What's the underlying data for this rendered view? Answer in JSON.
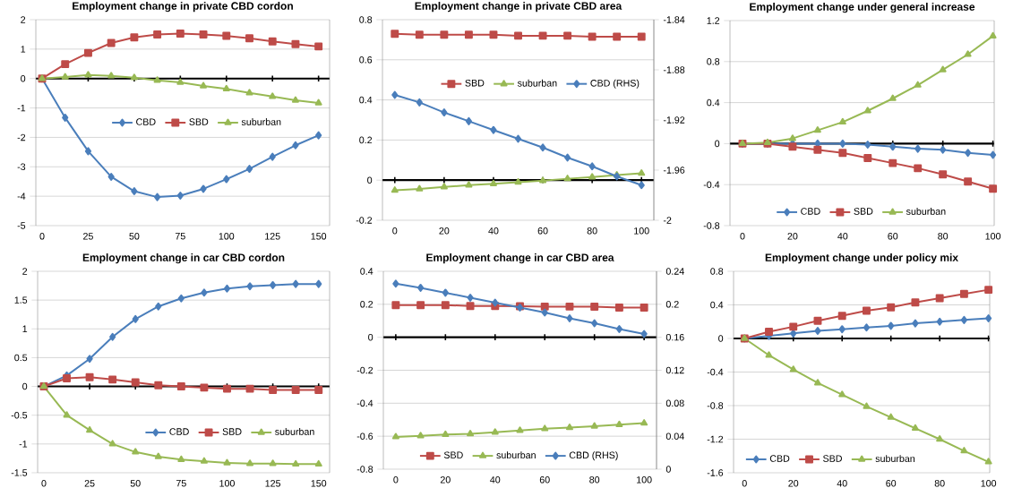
{
  "chart_data": [
    {
      "type": "line",
      "title": "Employment change in private CBD cordon",
      "x": [
        0,
        12.5,
        25,
        37.5,
        50,
        62.5,
        75,
        87.5,
        100,
        112.5,
        125,
        137.5,
        150
      ],
      "xlim": [
        -3.4,
        156
      ],
      "xticks": [
        0,
        25,
        50,
        75,
        100,
        125,
        150
      ],
      "ylim": [
        -5,
        2
      ],
      "yticks": [
        -5,
        -4,
        -3,
        -2,
        -1,
        0,
        1,
        2
      ],
      "grid": "y",
      "legend": "center",
      "series": [
        {
          "name": "CBD",
          "color": "#4a7ebb",
          "marker": "diamond",
          "values": [
            0,
            -1.33,
            -2.47,
            -3.34,
            -3.83,
            -4.03,
            -3.98,
            -3.75,
            -3.42,
            -3.07,
            -2.66,
            -2.27,
            -1.93
          ]
        },
        {
          "name": "SBD",
          "color": "#be4b48",
          "marker": "square",
          "values": [
            0,
            0.49,
            0.87,
            1.21,
            1.4,
            1.5,
            1.53,
            1.5,
            1.45,
            1.37,
            1.26,
            1.17,
            1.09
          ]
        },
        {
          "name": "suburban",
          "color": "#98b954",
          "marker": "triangle",
          "values": [
            0,
            0.05,
            0.12,
            0.09,
            0.03,
            -0.06,
            -0.13,
            -0.25,
            -0.35,
            -0.49,
            -0.61,
            -0.74,
            -0.83
          ]
        }
      ]
    },
    {
      "type": "line",
      "title": "Employment change in private CBD area",
      "x": [
        0,
        10,
        20,
        30,
        40,
        50,
        60,
        70,
        80,
        90,
        100
      ],
      "xlim": [
        -5,
        105
      ],
      "xticks": [
        0,
        20,
        40,
        60,
        80,
        100
      ],
      "ylim": [
        -0.2,
        0.8
      ],
      "yticks": [
        -0.2,
        0,
        0.2,
        0.4,
        0.6,
        0.8
      ],
      "y2lim": [
        -2,
        -1.84
      ],
      "y2ticks": [
        -2,
        -1.96,
        -1.92,
        -1.88,
        -1.84
      ],
      "grid": "y",
      "legend": "right",
      "series": [
        {
          "name": "SBD",
          "color": "#be4b48",
          "marker": "square",
          "values": [
            0.73,
            0.725,
            0.725,
            0.725,
            0.725,
            0.72,
            0.72,
            0.72,
            0.715,
            0.715,
            0.715
          ]
        },
        {
          "name": "suburban",
          "color": "#98b954",
          "marker": "triangle",
          "values": [
            -0.051,
            -0.044,
            -0.034,
            -0.025,
            -0.018,
            -0.01,
            -0.003,
            0.007,
            0.015,
            0.025,
            0.034
          ]
        },
        {
          "name": "CBD (RHS)",
          "color": "#4a7ebb",
          "marker": "diamond",
          "axis": "y2",
          "values": [
            -1.9,
            -1.906,
            -1.914,
            -1.921,
            -1.928,
            -1.935,
            -1.942,
            -1.95,
            -1.957,
            -1.965,
            -1.972
          ]
        }
      ]
    },
    {
      "type": "line",
      "title": "Employment change under general increase",
      "x": [
        0,
        10,
        20,
        30,
        40,
        50,
        60,
        70,
        80,
        90,
        100
      ],
      "xlim": [
        -5,
        100.5
      ],
      "xticks": [
        0,
        20,
        40,
        60,
        80,
        100
      ],
      "ylim": [
        -0.8,
        1.2
      ],
      "yticks": [
        -0.8,
        -0.4,
        0,
        0.4,
        0.8,
        1.2
      ],
      "grid": "y",
      "legend": "bottom",
      "series": [
        {
          "name": "CBD",
          "color": "#4a7ebb",
          "marker": "diamond",
          "values": [
            0,
            0,
            0,
            0,
            0,
            -0.01,
            -0.03,
            -0.05,
            -0.06,
            -0.09,
            -0.11
          ]
        },
        {
          "name": "SBD",
          "color": "#be4b48",
          "marker": "square",
          "values": [
            0,
            0,
            -0.03,
            -0.06,
            -0.09,
            -0.14,
            -0.19,
            -0.24,
            -0.3,
            -0.37,
            -0.44
          ]
        },
        {
          "name": "suburban",
          "color": "#98b954",
          "marker": "triangle",
          "values": [
            0,
            0.01,
            0.05,
            0.13,
            0.21,
            0.32,
            0.44,
            0.57,
            0.72,
            0.87,
            1.05
          ]
        }
      ]
    },
    {
      "type": "line",
      "title": "Employment change in car CBD cordon",
      "x": [
        0,
        12.5,
        25,
        37.5,
        50,
        62.5,
        75,
        87.5,
        100,
        112.5,
        125,
        137.5,
        150
      ],
      "xlim": [
        -3.4,
        156
      ],
      "xticks": [
        0,
        25,
        50,
        75,
        100,
        125,
        150
      ],
      "ylim": [
        -1.5,
        2
      ],
      "yticks": [
        -1.5,
        -1,
        -0.5,
        0,
        0.5,
        1,
        1.5,
        2
      ],
      "grid": "y",
      "legend": "bottom right",
      "series": [
        {
          "name": "CBD",
          "color": "#4a7ebb",
          "marker": "diamond",
          "values": [
            0,
            0.19,
            0.48,
            0.86,
            1.17,
            1.39,
            1.53,
            1.63,
            1.7,
            1.74,
            1.76,
            1.78,
            1.78
          ]
        },
        {
          "name": "SBD",
          "color": "#be4b48",
          "marker": "square",
          "values": [
            0,
            0.14,
            0.16,
            0.12,
            0.07,
            0.02,
            0,
            -0.02,
            -0.04,
            -0.04,
            -0.06,
            -0.06,
            -0.06
          ]
        },
        {
          "name": "suburban",
          "color": "#98b954",
          "marker": "triangle",
          "values": [
            0,
            -0.5,
            -0.76,
            -1,
            -1.14,
            -1.22,
            -1.27,
            -1.3,
            -1.33,
            -1.34,
            -1.34,
            -1.35,
            -1.35
          ]
        }
      ]
    },
    {
      "type": "line",
      "title": "Employment change in car CBD area",
      "x": [
        0,
        10,
        20,
        30,
        40,
        50,
        60,
        70,
        80,
        90,
        100
      ],
      "xlim": [
        -5,
        105
      ],
      "xticks": [
        0,
        20,
        40,
        60,
        80,
        100
      ],
      "ylim": [
        -0.8,
        0.4
      ],
      "yticks": [
        -0.8,
        -0.6,
        -0.4,
        -0.2,
        0,
        0.2,
        0.4
      ],
      "y2lim": [
        0,
        0.24
      ],
      "y2ticks": [
        0,
        0.04,
        0.08,
        0.12,
        0.16,
        0.2,
        0.24
      ],
      "grid": "y",
      "legend": "bottom",
      "series": [
        {
          "name": "SBD",
          "color": "#be4b48",
          "marker": "square",
          "values": [
            0.195,
            0.195,
            0.195,
            0.19,
            0.19,
            0.188,
            0.186,
            0.186,
            0.185,
            0.18,
            0.18
          ]
        },
        {
          "name": "suburban",
          "color": "#98b954",
          "marker": "triangle",
          "values": [
            -0.604,
            -0.598,
            -0.59,
            -0.586,
            -0.576,
            -0.565,
            -0.555,
            -0.548,
            -0.539,
            -0.53,
            -0.521
          ]
        },
        {
          "name": "CBD (RHS)",
          "color": "#4a7ebb",
          "marker": "diamond",
          "axis": "y2",
          "values": [
            0.225,
            0.22,
            0.214,
            0.208,
            0.202,
            0.196,
            0.19,
            0.183,
            0.177,
            0.17,
            0.164
          ]
        }
      ]
    },
    {
      "type": "line",
      "title": "Employment change under policy mix",
      "x": [
        0,
        10,
        20,
        30,
        40,
        50,
        60,
        70,
        80,
        90,
        100
      ],
      "xlim": [
        -4.5,
        100.5
      ],
      "xticks": [
        0,
        20,
        40,
        60,
        80,
        100
      ],
      "ylim": [
        -1.6,
        0.8
      ],
      "yticks": [
        -1.6,
        -1.2,
        -0.8,
        -0.4,
        0,
        0.4,
        0.8
      ],
      "grid": "y",
      "legend": "bottom left",
      "series": [
        {
          "name": "CBD",
          "color": "#4a7ebb",
          "marker": "diamond",
          "values": [
            0,
            0.03,
            0.06,
            0.09,
            0.11,
            0.13,
            0.15,
            0.18,
            0.2,
            0.22,
            0.24
          ]
        },
        {
          "name": "SBD",
          "color": "#be4b48",
          "marker": "square",
          "values": [
            0,
            0.08,
            0.14,
            0.21,
            0.27,
            0.33,
            0.37,
            0.43,
            0.48,
            0.53,
            0.58
          ]
        },
        {
          "name": "suburban",
          "color": "#98b954",
          "marker": "triangle",
          "values": [
            0,
            -0.2,
            -0.37,
            -0.53,
            -0.67,
            -0.81,
            -0.94,
            -1.07,
            -1.2,
            -1.34,
            -1.47
          ]
        }
      ]
    }
  ]
}
